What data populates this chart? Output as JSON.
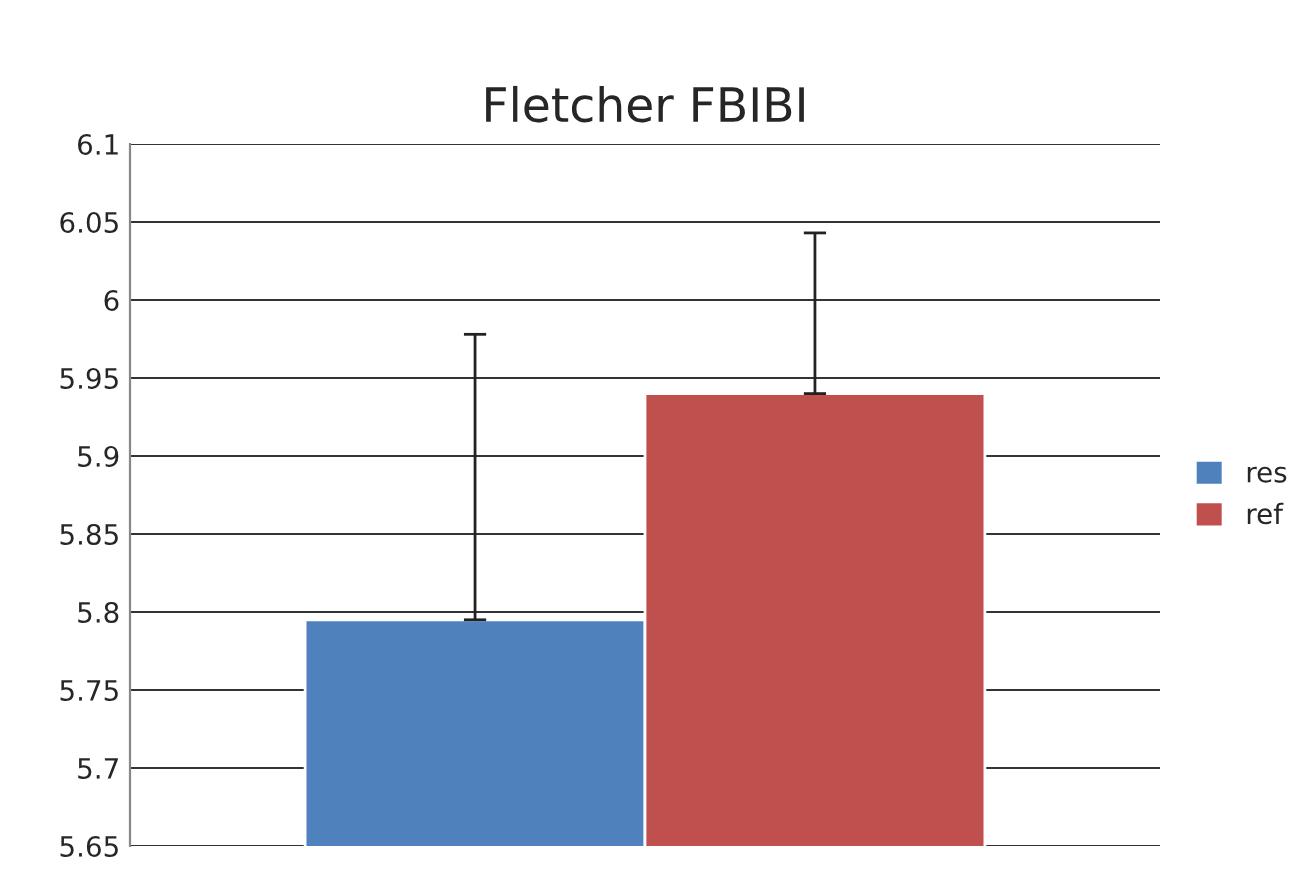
{
  "chart_data": {
    "type": "bar",
    "title": "Fletcher FBIBI",
    "categories": [
      null
    ],
    "series": [
      {
        "name": "res",
        "color": "#4f81bd",
        "values": [
          5.795
        ],
        "errors": [
          [
            5.795,
            5.978
          ]
        ]
      },
      {
        "name": "ref",
        "color": "#c0504d",
        "values": [
          5.94
        ],
        "errors": [
          [
            5.94,
            6.043
          ]
        ]
      }
    ],
    "ylim": [
      5.65,
      6.1
    ],
    "yticks": [
      5.65,
      5.7,
      5.75,
      5.8,
      5.85,
      5.9,
      5.95,
      6,
      6.05,
      6.1
    ],
    "grid": "y",
    "legend": "right"
  }
}
